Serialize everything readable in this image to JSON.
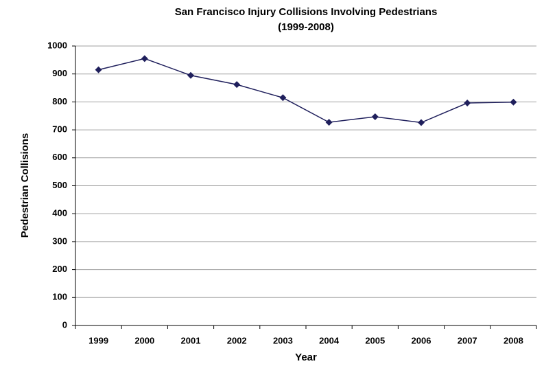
{
  "chart_data": {
    "type": "line",
    "title": "San Francisco Injury Collisions Involving Pedestrians",
    "subtitle": "(1999-2008)",
    "x_label": "Year",
    "y_label": "Pedestrian Collisions",
    "categories": [
      "1999",
      "2000",
      "2001",
      "2002",
      "2003",
      "2004",
      "2005",
      "2006",
      "2007",
      "2008"
    ],
    "series": [
      {
        "name": "Pedestrian Collisions",
        "color": "#1f1f5c",
        "values": [
          915,
          955,
          895,
          862,
          815,
          727,
          747,
          726,
          796,
          799
        ]
      }
    ],
    "ylim": [
      0,
      1000
    ],
    "yticks": [
      0,
      100,
      200,
      300,
      400,
      500,
      600,
      700,
      800,
      900,
      1000
    ],
    "grid": true
  }
}
